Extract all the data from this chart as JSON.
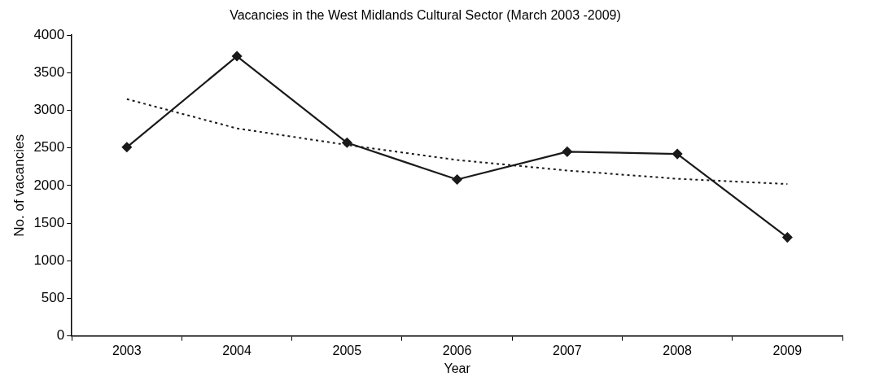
{
  "chart_data": {
    "type": "line",
    "title": "Vacancies in the West Midlands Cultural Sector (March 2003 -2009)",
    "xlabel": "Year",
    "ylabel": "No. of vacancies",
    "categories": [
      "2003",
      "2004",
      "2005",
      "2006",
      "2007",
      "2008",
      "2009"
    ],
    "series": [
      {
        "color": "#1a1a1a",
        "values": [
          2510,
          3720,
          2570,
          2080,
          2450,
          2420,
          1310
        ],
        "marker": "diamond",
        "line_style": "solid"
      },
      {
        "color": "#1a1a1a",
        "values": [
          3150,
          2760,
          2540,
          2340,
          2200,
          2090,
          2020
        ],
        "marker": "none",
        "line_style": "dotted"
      }
    ],
    "ylim": [
      0,
      4000
    ],
    "yticks": [
      0,
      500,
      1000,
      1500,
      2000,
      2500,
      3000,
      3500,
      4000
    ],
    "grid": false,
    "legend": false
  }
}
